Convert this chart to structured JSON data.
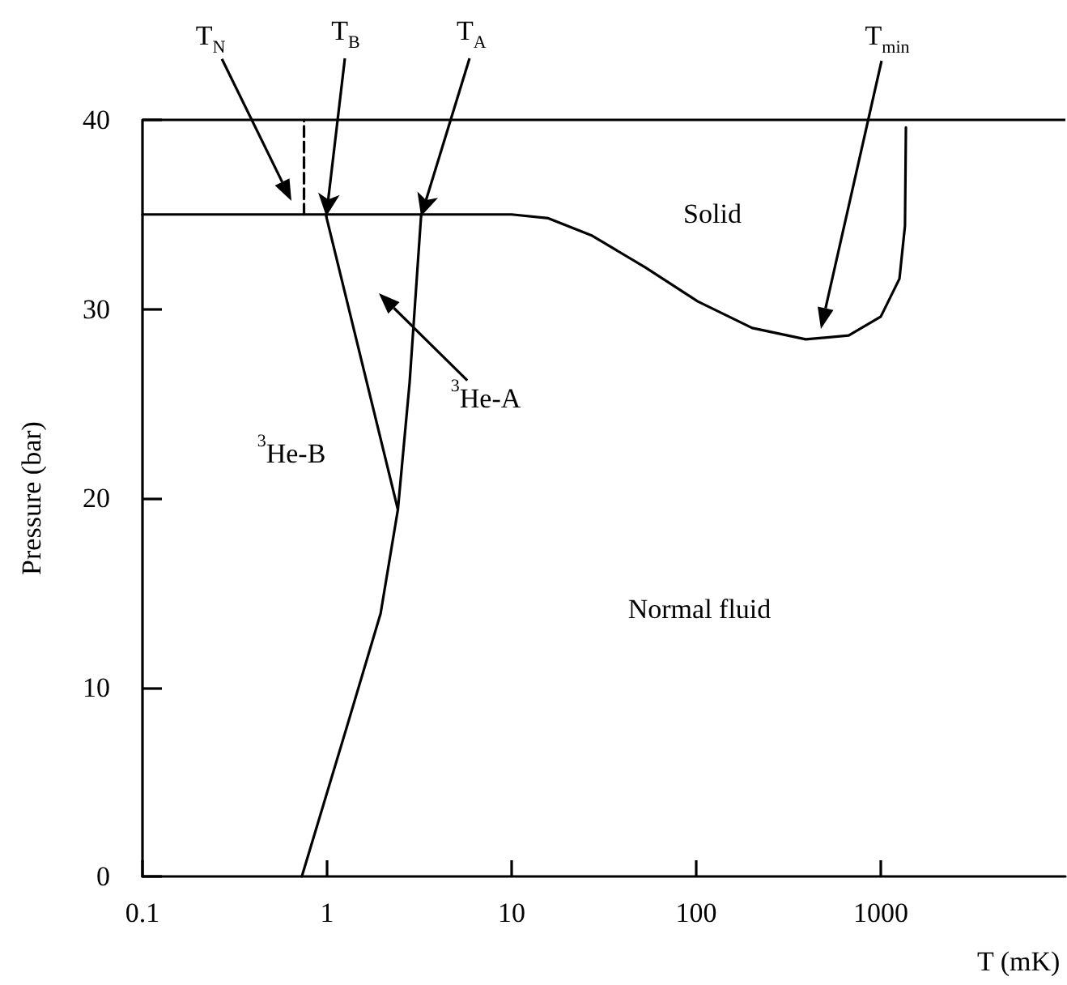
{
  "chart_data": {
    "type": "line",
    "xlabel": "T (mK)",
    "ylabel": "Pressure (bar)",
    "log": "x",
    "xlim": [
      0.1,
      10000
    ],
    "ylim": [
      0,
      40
    ],
    "xticks": [
      0.1,
      1,
      10,
      100,
      1000
    ],
    "yticks": [
      0,
      10,
      20,
      30,
      40
    ],
    "grid": false,
    "marker": "none",
    "line_style": "solid",
    "series": [
      {
        "color": "#000000",
        "x": [
          0.1,
          10,
          15.8,
          27,
          53,
          102,
          201,
          392,
          670,
          1000,
          1262,
          1352,
          1368
        ],
        "values": [
          35,
          35,
          34.8,
          33.9,
          32.2,
          30.4,
          29.0,
          28.4,
          28.6,
          29.6,
          31.6,
          34.4,
          39.6
        ]
      },
      {
        "color": "#000000",
        "x": [
          0.99,
          2.42
        ],
        "values": [
          34.9,
          19.4
        ]
      },
      {
        "color": "#000000",
        "x": [
          0.73,
          1.27,
          1.95,
          2.42,
          2.8,
          3.23
        ],
        "values": [
          0,
          7.8,
          13.9,
          19.4,
          26.1,
          34.9
        ]
      },
      {
        "color": "#000000",
        "line_style": "dashed",
        "x": [
          0.75,
          0.75
        ],
        "values": [
          35,
          40
        ]
      }
    ],
    "ref_lines": [
      {
        "axis": "y",
        "value": 40,
        "color": "#000000"
      }
    ],
    "annotations": [
      "T$_{N}$",
      {
        "text": "T$_{B}$",
        "x": 0.99,
        "y": 34.9
      },
      {
        "text": "T$_{A}$",
        "x": 3.23,
        "y": 34.9
      },
      "T$_{min}$",
      "$^{3}$He-A",
      "$^{3}$He-B",
      "Solid",
      "Normal fluid"
    ]
  }
}
